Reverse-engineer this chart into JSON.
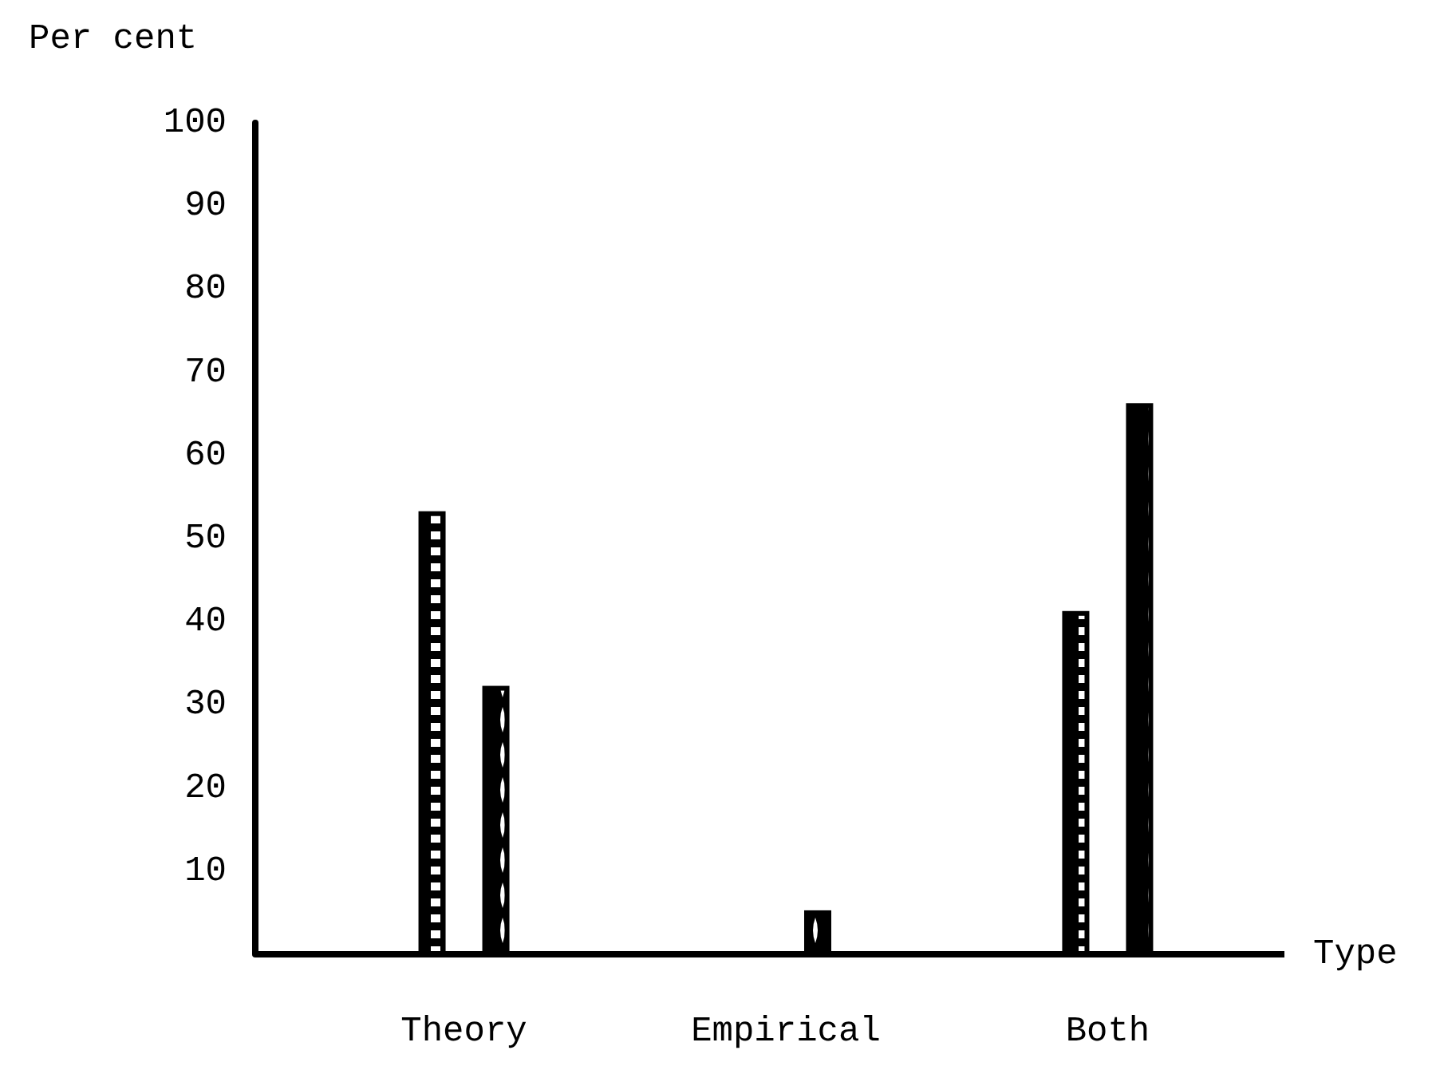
{
  "chart_data": {
    "type": "bar",
    "xlabel": "Type",
    "ylabel": "Per cent",
    "categories": [
      "Theory",
      "Empirical",
      "Both"
    ],
    "series": [
      {
        "color": "#000000",
        "values": [
          53,
          null,
          41
        ]
      },
      {
        "color": "#000000",
        "values": [
          32,
          5,
          66
        ]
      }
    ],
    "ylim": [
      0,
      100
    ],
    "yticks": [
      10,
      20,
      30,
      40,
      50,
      60,
      70,
      80,
      90,
      100
    ],
    "grid": false
  }
}
